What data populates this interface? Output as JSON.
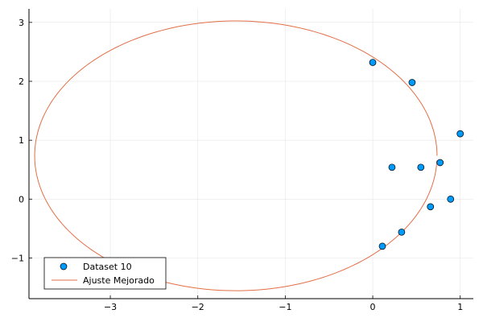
{
  "chart_data": {
    "type": "scatter",
    "title": "",
    "xlabel": "",
    "ylabel": "",
    "xlim": [
      -3.93,
      1.15
    ],
    "ylim": [
      -1.69,
      3.23
    ],
    "grid": true,
    "legend_position": "bottom-left",
    "xticks": [
      -3,
      -2,
      -1,
      0,
      1
    ],
    "yticks": [
      -1,
      0,
      1,
      2,
      3
    ],
    "xtick_labels": [
      "−3",
      "−2",
      "−1",
      "0",
      "1"
    ],
    "ytick_labels": [
      "−1",
      "0",
      "1",
      "2",
      "3"
    ],
    "series": [
      {
        "name": "Dataset 10",
        "kind": "scatter",
        "color": "#009AFA",
        "points": [
          {
            "x": 0.0,
            "y": 2.32
          },
          {
            "x": 0.45,
            "y": 1.98
          },
          {
            "x": 1.0,
            "y": 1.11
          },
          {
            "x": 0.77,
            "y": 0.62
          },
          {
            "x": 0.22,
            "y": 0.54
          },
          {
            "x": 0.55,
            "y": 0.54
          },
          {
            "x": 0.89,
            "y": 0.0
          },
          {
            "x": 0.66,
            "y": -0.13
          },
          {
            "x": 0.33,
            "y": -0.56
          },
          {
            "x": 0.11,
            "y": -0.8
          }
        ]
      },
      {
        "name": "Ajuste Mejorado",
        "kind": "ellipse",
        "color": "#E26F46",
        "center": {
          "x": -1.565,
          "y": 0.735
        },
        "semi_axis_x": 2.3,
        "semi_axis_y": 2.29,
        "start_angle_deg": 0,
        "end_angle_deg": 358
      }
    ]
  }
}
